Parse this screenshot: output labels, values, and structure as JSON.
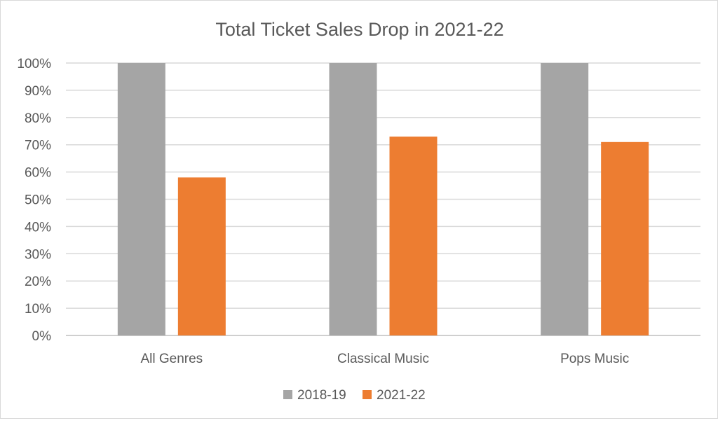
{
  "chart_data": {
    "type": "bar",
    "title": "Total Ticket Sales Drop in 2021-22",
    "xlabel": "",
    "ylabel": "",
    "ylim": [
      0,
      100
    ],
    "yticks": [
      "0%",
      "10%",
      "20%",
      "30%",
      "40%",
      "50%",
      "60%",
      "70%",
      "80%",
      "90%",
      "100%"
    ],
    "categories": [
      "All Genres",
      "Classical Music",
      "Pops Music"
    ],
    "series": [
      {
        "name": "2018-19",
        "values": [
          100,
          100,
          100
        ],
        "color": "#a5a5a5"
      },
      {
        "name": "2021-22",
        "values": [
          58,
          73,
          71
        ],
        "color": "#ed7d31"
      }
    ],
    "grid": true,
    "legend": "bottom"
  }
}
